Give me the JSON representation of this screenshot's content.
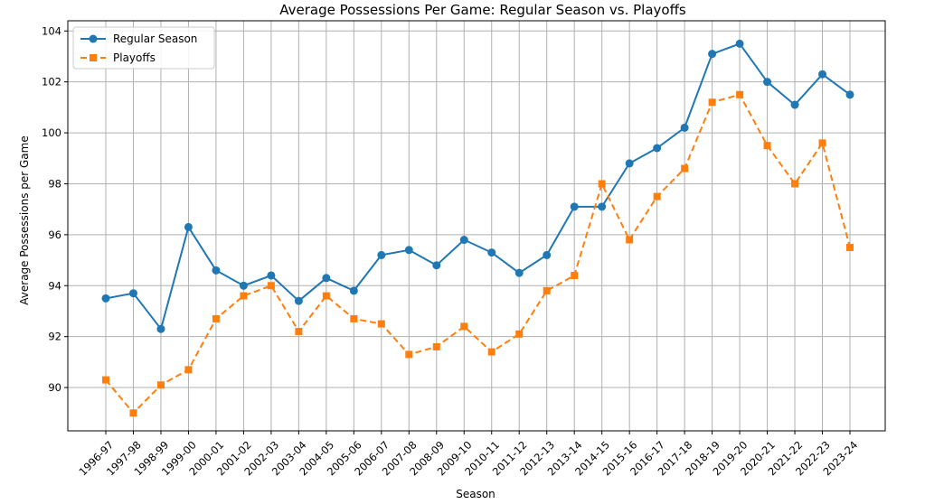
{
  "chart_data": {
    "type": "line",
    "title": "Average Possessions Per Game: Regular Season vs. Playoffs",
    "xlabel": "Season",
    "ylabel": "Average Possessions per Game",
    "categories": [
      "1996-97",
      "1997-98",
      "1998-99",
      "1999-00",
      "2000-01",
      "2001-02",
      "2002-03",
      "2003-04",
      "2004-05",
      "2005-06",
      "2006-07",
      "2007-08",
      "2008-09",
      "2009-10",
      "2010-11",
      "2011-12",
      "2012-13",
      "2013-14",
      "2014-15",
      "2015-16",
      "2016-17",
      "2017-18",
      "2018-19",
      "2019-20",
      "2020-21",
      "2021-22",
      "2022-23",
      "2023-24"
    ],
    "yticks": [
      90,
      92,
      94,
      96,
      98,
      100,
      102,
      104
    ],
    "ylim": [
      88.3,
      104.4
    ],
    "grid": true,
    "legend_position": "top-left",
    "series": [
      {
        "name": "Regular Season",
        "color": "#1f77b4",
        "marker": "circle",
        "line_style": "solid",
        "values": [
          93.5,
          93.7,
          92.3,
          96.3,
          94.6,
          94.0,
          94.4,
          93.4,
          94.3,
          93.8,
          95.2,
          95.4,
          94.8,
          95.8,
          95.3,
          94.5,
          95.2,
          97.1,
          97.1,
          98.8,
          99.4,
          100.2,
          103.1,
          103.5,
          102.0,
          101.1,
          102.3,
          101.5
        ]
      },
      {
        "name": "Playoffs",
        "color": "#ff7f0e",
        "marker": "square",
        "line_style": "dashed",
        "values": [
          90.3,
          89.0,
          90.1,
          90.7,
          92.7,
          93.6,
          94.0,
          92.2,
          93.6,
          92.7,
          92.5,
          91.3,
          91.6,
          92.4,
          91.4,
          92.1,
          93.8,
          94.4,
          98.0,
          95.8,
          97.5,
          98.6,
          101.2,
          101.5,
          99.5,
          98.0,
          99.6,
          95.5
        ]
      }
    ]
  }
}
